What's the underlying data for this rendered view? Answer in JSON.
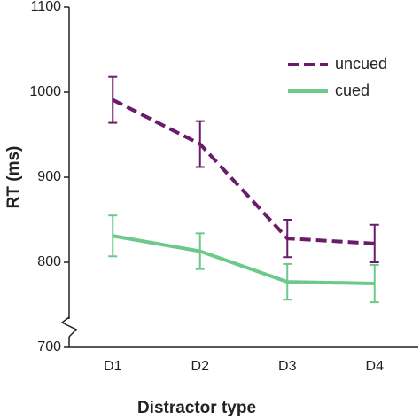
{
  "chart_data": {
    "type": "line",
    "x_label": "Distractor type",
    "y_label": "RT (ms)",
    "categories": [
      "D1",
      "D2",
      "D3",
      "D4"
    ],
    "series": [
      {
        "name": "uncued",
        "color": "#6a1b6a",
        "dash": true,
        "values": [
          991,
          939,
          828,
          822
        ],
        "errors": [
          27,
          27,
          22,
          22
        ]
      },
      {
        "name": "cued",
        "color": "#6cc98a",
        "dash": false,
        "values": [
          831,
          813,
          777,
          775
        ],
        "errors": [
          24,
          21,
          21,
          22
        ]
      }
    ],
    "ylim": [
      700,
      1100
    ],
    "yticks": [
      700,
      800,
      900,
      1000,
      1100
    ],
    "legend": "top-right"
  }
}
